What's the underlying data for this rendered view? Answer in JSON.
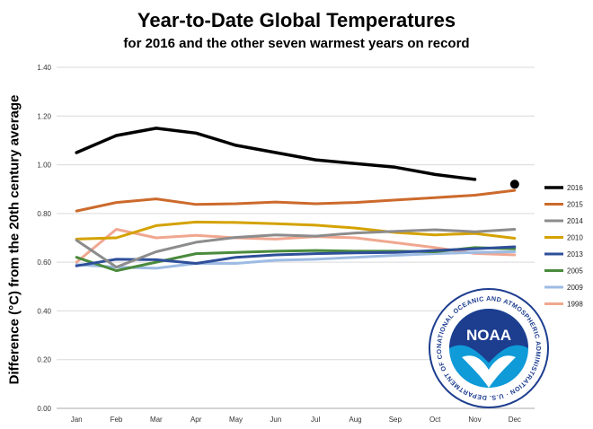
{
  "title": "Year-to-Date Global Temperatures",
  "subtitle": "for 2016 and the other seven warmest years on record",
  "logo": {
    "text": "NOAA",
    "ring_text": "NATIONAL OCEANIC AND ATMOSPHERIC ADMINISTRATION · U.S. DEPARTMENT OF COMMERCE"
  },
  "chart_data": {
    "type": "line",
    "title": "Year-to-Date Global Temperatures",
    "subtitle": "for 2016 and the other seven warmest years on record",
    "xlabel": "",
    "ylabel": "Difference (°C) from the 20th century average",
    "ylim": [
      0,
      1.4
    ],
    "yticks": [
      "0.00",
      "0.20",
      "0.40",
      "0.60",
      "0.80",
      "1.00",
      "1.20",
      "1.40"
    ],
    "grid": true,
    "legend_position": "right",
    "categories": [
      "Jan",
      "Feb",
      "Mar",
      "Apr",
      "May",
      "Jun",
      "Jul",
      "Aug",
      "Sep",
      "Oct",
      "Nov",
      "Dec"
    ],
    "series": [
      {
        "name": "2016",
        "color": "#000000",
        "width": 3.5,
        "values": [
          1.05,
          1.12,
          1.15,
          1.13,
          1.08,
          1.05,
          1.02,
          1.005,
          0.99,
          0.96,
          0.94,
          null
        ],
        "marker": {
          "category": "Dec",
          "value": 0.92
        }
      },
      {
        "name": "2015",
        "color": "#cc6a2c",
        "width": 3,
        "values": [
          0.81,
          0.845,
          0.86,
          0.837,
          0.84,
          0.847,
          0.84,
          0.845,
          0.855,
          0.865,
          0.875,
          0.895
        ]
      },
      {
        "name": "2014",
        "color": "#8c8c8c",
        "width": 3,
        "values": [
          0.69,
          0.58,
          0.643,
          0.682,
          0.702,
          0.712,
          0.707,
          0.72,
          0.727,
          0.733,
          0.725,
          0.735
        ]
      },
      {
        "name": "2010",
        "color": "#d4a200",
        "width": 3,
        "values": [
          0.695,
          0.7,
          0.75,
          0.765,
          0.763,
          0.758,
          0.752,
          0.74,
          0.722,
          0.712,
          0.718,
          0.698
        ]
      },
      {
        "name": "2013",
        "color": "#2e4f9a",
        "width": 3,
        "values": [
          0.585,
          0.612,
          0.61,
          0.595,
          0.62,
          0.63,
          0.635,
          0.638,
          0.64,
          0.648,
          0.655,
          0.663
        ]
      },
      {
        "name": "2005",
        "color": "#4a8a3c",
        "width": 3,
        "values": [
          0.62,
          0.565,
          0.6,
          0.635,
          0.64,
          0.645,
          0.648,
          0.645,
          0.645,
          0.643,
          0.66,
          0.655
        ]
      },
      {
        "name": "2009",
        "color": "#9dbbe3",
        "width": 3,
        "values": [
          0.59,
          0.58,
          0.575,
          0.595,
          0.595,
          0.608,
          0.612,
          0.62,
          0.628,
          0.635,
          0.64,
          0.643
        ]
      },
      {
        "name": "1998",
        "color": "#f0a790",
        "width": 3,
        "values": [
          0.6,
          0.735,
          0.7,
          0.71,
          0.7,
          0.695,
          0.705,
          0.7,
          0.68,
          0.66,
          0.636,
          0.63
        ]
      }
    ]
  }
}
